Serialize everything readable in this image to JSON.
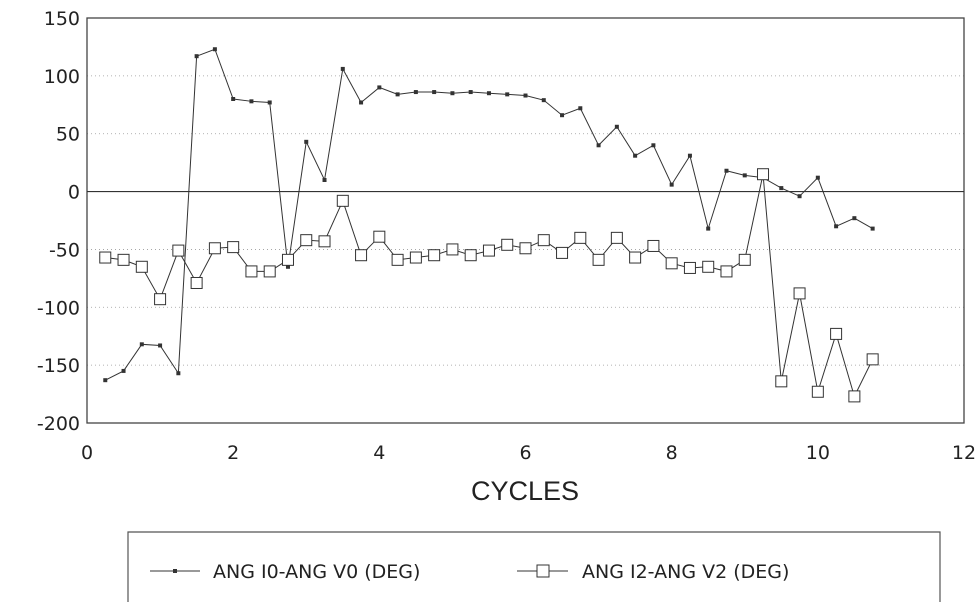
{
  "chart_data": {
    "type": "line",
    "title": "",
    "xlabel": "CYCLES",
    "ylabel": "",
    "xlim": [
      0,
      12
    ],
    "ylim": [
      -200,
      150
    ],
    "xticks": [
      0,
      2,
      4,
      6,
      8,
      10,
      12
    ],
    "yticks": [
      150,
      100,
      50,
      0,
      -50,
      -100,
      -150,
      -200
    ],
    "grid": "horizontal dotted",
    "zero_line": true,
    "legend_position": "bottom",
    "series": [
      {
        "name": "ANG I0-ANG V0 (DEG)",
        "marker": "small-square",
        "color": "#333333",
        "x": [
          0.25,
          0.5,
          0.75,
          1.0,
          1.25,
          1.5,
          1.75,
          2.0,
          2.25,
          2.5,
          2.75,
          3.0,
          3.25,
          3.5,
          3.75,
          4.0,
          4.25,
          4.5,
          4.75,
          5.0,
          5.25,
          5.5,
          5.75,
          6.0,
          6.25,
          6.5,
          6.75,
          7.0,
          7.25,
          7.5,
          7.75,
          8.0,
          8.25,
          8.5,
          8.75,
          9.0,
          9.25,
          9.5,
          9.75,
          10.0,
          10.25,
          10.5,
          10.75
        ],
        "y": [
          -163,
          -155,
          -132,
          -133,
          -157,
          117,
          123,
          80,
          78,
          77,
          -65,
          43,
          10,
          106,
          77,
          90,
          84,
          86,
          86,
          85,
          86,
          85,
          84,
          83,
          79,
          66,
          72,
          40,
          56,
          31,
          40,
          6,
          31,
          -32,
          18,
          14,
          12,
          3,
          -4,
          12,
          -30,
          -23,
          -32
        ]
      },
      {
        "name": "ANG I2-ANG V2 (DEG)",
        "marker": "open-square",
        "color": "#333333",
        "x": [
          0.25,
          0.5,
          0.75,
          1.0,
          1.25,
          1.5,
          1.75,
          2.0,
          2.25,
          2.5,
          2.75,
          3.0,
          3.25,
          3.5,
          3.75,
          4.0,
          4.25,
          4.5,
          4.75,
          5.0,
          5.25,
          5.5,
          5.75,
          6.0,
          6.25,
          6.5,
          6.75,
          7.0,
          7.25,
          7.5,
          7.75,
          8.0,
          8.25,
          8.5,
          8.75,
          9.0,
          9.25,
          9.5,
          9.75,
          10.0,
          10.25,
          10.5,
          10.75
        ],
        "y": [
          -57,
          -59,
          -65,
          -93,
          -51,
          -79,
          -49,
          -48,
          -69,
          -69,
          -59,
          -42,
          -43,
          -8,
          -55,
          -39,
          -59,
          -57,
          -55,
          -50,
          -55,
          -51,
          -46,
          -49,
          -42,
          -53,
          -40,
          -59,
          -40,
          -57,
          -47,
          -62,
          -66,
          -65,
          -69,
          -59,
          15,
          -164,
          -88,
          -173,
          -123,
          -177,
          -145
        ]
      }
    ]
  }
}
